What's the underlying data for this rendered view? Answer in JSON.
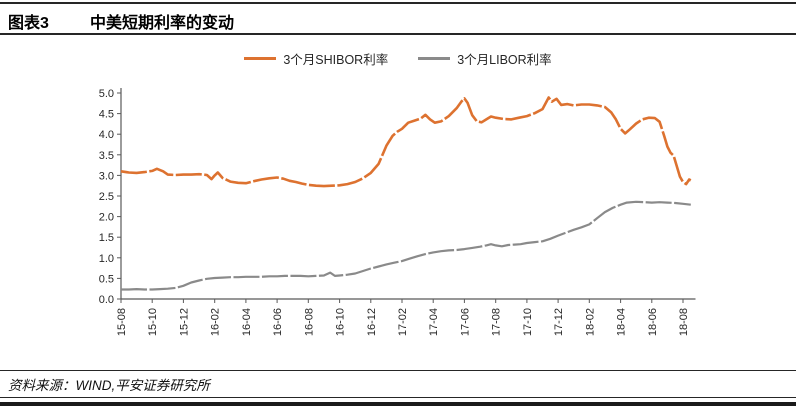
{
  "header": {
    "figure_label": "图表3",
    "title": "中美短期利率的变动"
  },
  "legend": [
    {
      "label": "3个月SHIBOR利率",
      "color": "#DD7230"
    },
    {
      "label": "3个月LIBOR利率",
      "color": "#8A8A8A"
    }
  ],
  "source": {
    "text": "资料来源：WIND,平安证券研究所"
  },
  "chart_data": {
    "type": "line",
    "title": "中美短期利率的变动",
    "grid": false,
    "legend_position": "top-center",
    "x_axis": {
      "unit": "months since 2015-08",
      "range": [
        "2015-08",
        "2018-08"
      ],
      "tick_month_interval": 2,
      "tick_labels": [
        "15-08",
        "15-10",
        "15-12",
        "16-02",
        "16-04",
        "16-06",
        "16-08",
        "16-10",
        "16-12",
        "17-02",
        "17-04",
        "17-06",
        "17-08",
        "17-10",
        "17-12",
        "18-02",
        "18-04",
        "18-06",
        "18-08"
      ]
    },
    "y_axis": {
      "min": 0,
      "max": 5,
      "step": 0.5,
      "tick_labels": [
        "0.0",
        "0.5",
        "1.0",
        "1.5",
        "2.0",
        "2.5",
        "3.0",
        "3.5",
        "4.0",
        "4.5",
        "5.0"
      ]
    },
    "series": [
      {
        "name": "3个月SHIBOR利率",
        "color": "#DD7230",
        "points": [
          [
            0,
            3.1
          ],
          [
            0.5,
            3.07
          ],
          [
            1,
            3.06
          ],
          [
            1.5,
            3.08
          ],
          [
            2,
            3.11
          ],
          [
            2.3,
            3.16
          ],
          [
            2.7,
            3.1
          ],
          [
            3,
            3.02
          ],
          [
            3.5,
            3.01
          ],
          [
            4,
            3.02
          ],
          [
            4.5,
            3.02
          ],
          [
            5,
            3.03
          ],
          [
            5.5,
            3.01
          ],
          [
            5.8,
            2.91
          ],
          [
            6,
            3.0
          ],
          [
            6.2,
            3.07
          ],
          [
            6.5,
            2.94
          ],
          [
            7,
            2.85
          ],
          [
            7.5,
            2.82
          ],
          [
            8,
            2.81
          ],
          [
            8.5,
            2.86
          ],
          [
            9,
            2.9
          ],
          [
            9.5,
            2.93
          ],
          [
            10,
            2.95
          ],
          [
            10.4,
            2.92
          ],
          [
            10.8,
            2.87
          ],
          [
            11.2,
            2.84
          ],
          [
            11.6,
            2.8
          ],
          [
            12,
            2.77
          ],
          [
            12.5,
            2.75
          ],
          [
            13,
            2.74
          ],
          [
            13.5,
            2.75
          ],
          [
            14,
            2.76
          ],
          [
            14.5,
            2.79
          ],
          [
            15,
            2.84
          ],
          [
            15.5,
            2.93
          ],
          [
            16,
            3.06
          ],
          [
            16.5,
            3.28
          ],
          [
            17,
            3.72
          ],
          [
            17.4,
            3.96
          ],
          [
            17.7,
            4.06
          ],
          [
            18,
            4.13
          ],
          [
            18.4,
            4.28
          ],
          [
            18.8,
            4.33
          ],
          [
            19.2,
            4.38
          ],
          [
            19.5,
            4.47
          ],
          [
            19.8,
            4.36
          ],
          [
            20.1,
            4.28
          ],
          [
            20.5,
            4.31
          ],
          [
            21,
            4.44
          ],
          [
            21.5,
            4.63
          ],
          [
            21.8,
            4.79
          ],
          [
            22,
            4.87
          ],
          [
            22.2,
            4.76
          ],
          [
            22.5,
            4.46
          ],
          [
            22.8,
            4.31
          ],
          [
            23.1,
            4.29
          ],
          [
            23.4,
            4.36
          ],
          [
            23.7,
            4.43
          ],
          [
            24,
            4.4
          ],
          [
            24.5,
            4.37
          ],
          [
            25,
            4.36
          ],
          [
            25.5,
            4.4
          ],
          [
            26,
            4.44
          ],
          [
            26.5,
            4.51
          ],
          [
            27,
            4.61
          ],
          [
            27.4,
            4.89
          ],
          [
            27.6,
            4.79
          ],
          [
            27.9,
            4.86
          ],
          [
            28.2,
            4.71
          ],
          [
            28.6,
            4.73
          ],
          [
            29,
            4.7
          ],
          [
            29.5,
            4.72
          ],
          [
            30,
            4.72
          ],
          [
            30.5,
            4.7
          ],
          [
            31,
            4.66
          ],
          [
            31.4,
            4.53
          ],
          [
            31.7,
            4.36
          ],
          [
            32,
            4.13
          ],
          [
            32.3,
            4.02
          ],
          [
            32.6,
            4.12
          ],
          [
            33,
            4.26
          ],
          [
            33.4,
            4.36
          ],
          [
            33.8,
            4.4
          ],
          [
            34.2,
            4.39
          ],
          [
            34.5,
            4.3
          ],
          [
            34.8,
            3.95
          ],
          [
            35,
            3.7
          ],
          [
            35.2,
            3.55
          ],
          [
            35.4,
            3.48
          ],
          [
            35.6,
            3.22
          ],
          [
            35.8,
            2.97
          ],
          [
            36,
            2.84
          ],
          [
            36.2,
            2.79
          ],
          [
            36.4,
            2.9
          ],
          [
            36.5,
            2.88
          ]
        ]
      },
      {
        "name": "3个月LIBOR利率",
        "color": "#8A8A8A",
        "points": [
          [
            0,
            0.23
          ],
          [
            0.5,
            0.23
          ],
          [
            1,
            0.24
          ],
          [
            1.5,
            0.23
          ],
          [
            2,
            0.23
          ],
          [
            2.5,
            0.24
          ],
          [
            3,
            0.25
          ],
          [
            3.5,
            0.27
          ],
          [
            4,
            0.32
          ],
          [
            4.5,
            0.4
          ],
          [
            5,
            0.45
          ],
          [
            5.5,
            0.49
          ],
          [
            6,
            0.51
          ],
          [
            6.5,
            0.52
          ],
          [
            7,
            0.53
          ],
          [
            7.5,
            0.53
          ],
          [
            8,
            0.54
          ],
          [
            8.5,
            0.54
          ],
          [
            9,
            0.54
          ],
          [
            9.5,
            0.55
          ],
          [
            10,
            0.55
          ],
          [
            10.5,
            0.56
          ],
          [
            11,
            0.56
          ],
          [
            11.5,
            0.56
          ],
          [
            12,
            0.55
          ],
          [
            12.5,
            0.56
          ],
          [
            13,
            0.57
          ],
          [
            13.4,
            0.64
          ],
          [
            13.7,
            0.56
          ],
          [
            14,
            0.57
          ],
          [
            14.5,
            0.59
          ],
          [
            15,
            0.62
          ],
          [
            15.5,
            0.68
          ],
          [
            16,
            0.74
          ],
          [
            16.5,
            0.79
          ],
          [
            17,
            0.84
          ],
          [
            17.5,
            0.88
          ],
          [
            18,
            0.92
          ],
          [
            18.5,
            0.98
          ],
          [
            19,
            1.04
          ],
          [
            19.5,
            1.09
          ],
          [
            20,
            1.13
          ],
          [
            20.5,
            1.16
          ],
          [
            21,
            1.18
          ],
          [
            21.5,
            1.19
          ],
          [
            22,
            1.21
          ],
          [
            22.5,
            1.24
          ],
          [
            23,
            1.27
          ],
          [
            23.4,
            1.3
          ],
          [
            23.7,
            1.33
          ],
          [
            24,
            1.3
          ],
          [
            24.4,
            1.28
          ],
          [
            24.8,
            1.31
          ],
          [
            25.2,
            1.32
          ],
          [
            25.6,
            1.33
          ],
          [
            26,
            1.36
          ],
          [
            26.5,
            1.38
          ],
          [
            27,
            1.4
          ],
          [
            27.5,
            1.46
          ],
          [
            28,
            1.54
          ],
          [
            28.5,
            1.61
          ],
          [
            29,
            1.68
          ],
          [
            29.5,
            1.74
          ],
          [
            30,
            1.81
          ],
          [
            30.5,
            1.96
          ],
          [
            31,
            2.11
          ],
          [
            31.5,
            2.21
          ],
          [
            32,
            2.29
          ],
          [
            32.4,
            2.34
          ],
          [
            33,
            2.36
          ],
          [
            33.5,
            2.35
          ],
          [
            34,
            2.34
          ],
          [
            34.5,
            2.35
          ],
          [
            35,
            2.34
          ],
          [
            35.5,
            2.33
          ],
          [
            36,
            2.31
          ],
          [
            36.5,
            2.29
          ]
        ]
      }
    ]
  }
}
